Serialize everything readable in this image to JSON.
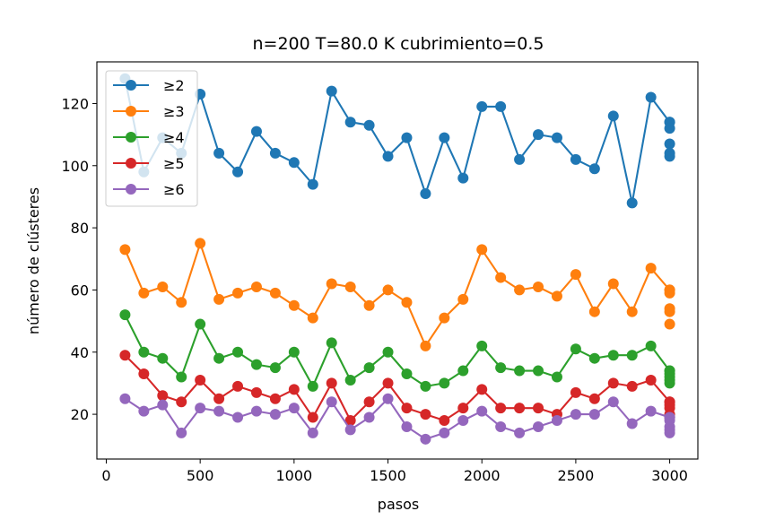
{
  "chart_data": {
    "type": "line",
    "title": "n=200 T=80.0 K cubrimiento=0.5",
    "xlabel": "pasos",
    "ylabel": "número de clústeres",
    "xlim": [
      -50,
      3150
    ],
    "ylim": [
      5.6,
      133.4
    ],
    "xticks": [
      0,
      500,
      1000,
      1500,
      2000,
      2500,
      3000
    ],
    "yticks": [
      20,
      40,
      60,
      80,
      100,
      120
    ],
    "grid": false,
    "legend_position": "top-left",
    "x": [
      100,
      200,
      300,
      400,
      500,
      600,
      700,
      800,
      900,
      1000,
      1100,
      1200,
      1300,
      1400,
      1500,
      1600,
      1700,
      1800,
      1900,
      2000,
      2100,
      2200,
      2300,
      2400,
      2500,
      2600,
      2700,
      2800,
      2900,
      3000
    ],
    "final_step": 3000,
    "series": [
      {
        "name": "≥2",
        "color": "#1f77b4",
        "values": [
          128,
          98,
          109,
          104,
          123,
          104,
          98,
          111,
          104,
          101,
          94,
          124,
          114,
          113,
          103,
          109,
          91,
          109,
          96,
          119,
          119,
          102,
          110,
          109,
          102,
          99,
          116,
          88,
          122,
          114
        ],
        "final_values": [
          114,
          112,
          107,
          104,
          103
        ]
      },
      {
        "name": "≥3",
        "color": "#ff7f0e",
        "values": [
          73,
          59,
          61,
          56,
          75,
          57,
          59,
          61,
          59,
          55,
          51,
          62,
          61,
          55,
          60,
          56,
          42,
          51,
          57,
          73,
          64,
          60,
          61,
          58,
          65,
          53,
          62,
          53,
          67,
          60
        ],
        "final_values": [
          60,
          59,
          54,
          53,
          49
        ]
      },
      {
        "name": "≥4",
        "color": "#2ca02c",
        "values": [
          52,
          40,
          38,
          32,
          49,
          38,
          40,
          36,
          35,
          40,
          29,
          43,
          31,
          35,
          40,
          33,
          29,
          30,
          34,
          42,
          35,
          34,
          34,
          32,
          41,
          38,
          39,
          39,
          42,
          34
        ],
        "final_values": [
          34,
          33,
          32,
          31,
          30
        ]
      },
      {
        "name": "≥5",
        "color": "#d62728",
        "values": [
          39,
          33,
          26,
          24,
          31,
          25,
          29,
          27,
          25,
          28,
          19,
          30,
          18,
          24,
          30,
          22,
          20,
          18,
          22,
          28,
          22,
          22,
          22,
          20,
          27,
          25,
          30,
          29,
          31,
          24
        ],
        "final_values": [
          24,
          23,
          22,
          20,
          19
        ]
      },
      {
        "name": "≥6",
        "color": "#9467bd",
        "values": [
          25,
          21,
          23,
          14,
          22,
          21,
          19,
          21,
          20,
          22,
          14,
          24,
          15,
          19,
          25,
          16,
          12,
          14,
          18,
          21,
          16,
          14,
          16,
          18,
          20,
          20,
          24,
          17,
          21,
          19
        ],
        "final_values": [
          19,
          18,
          16,
          15,
          14
        ]
      }
    ]
  }
}
